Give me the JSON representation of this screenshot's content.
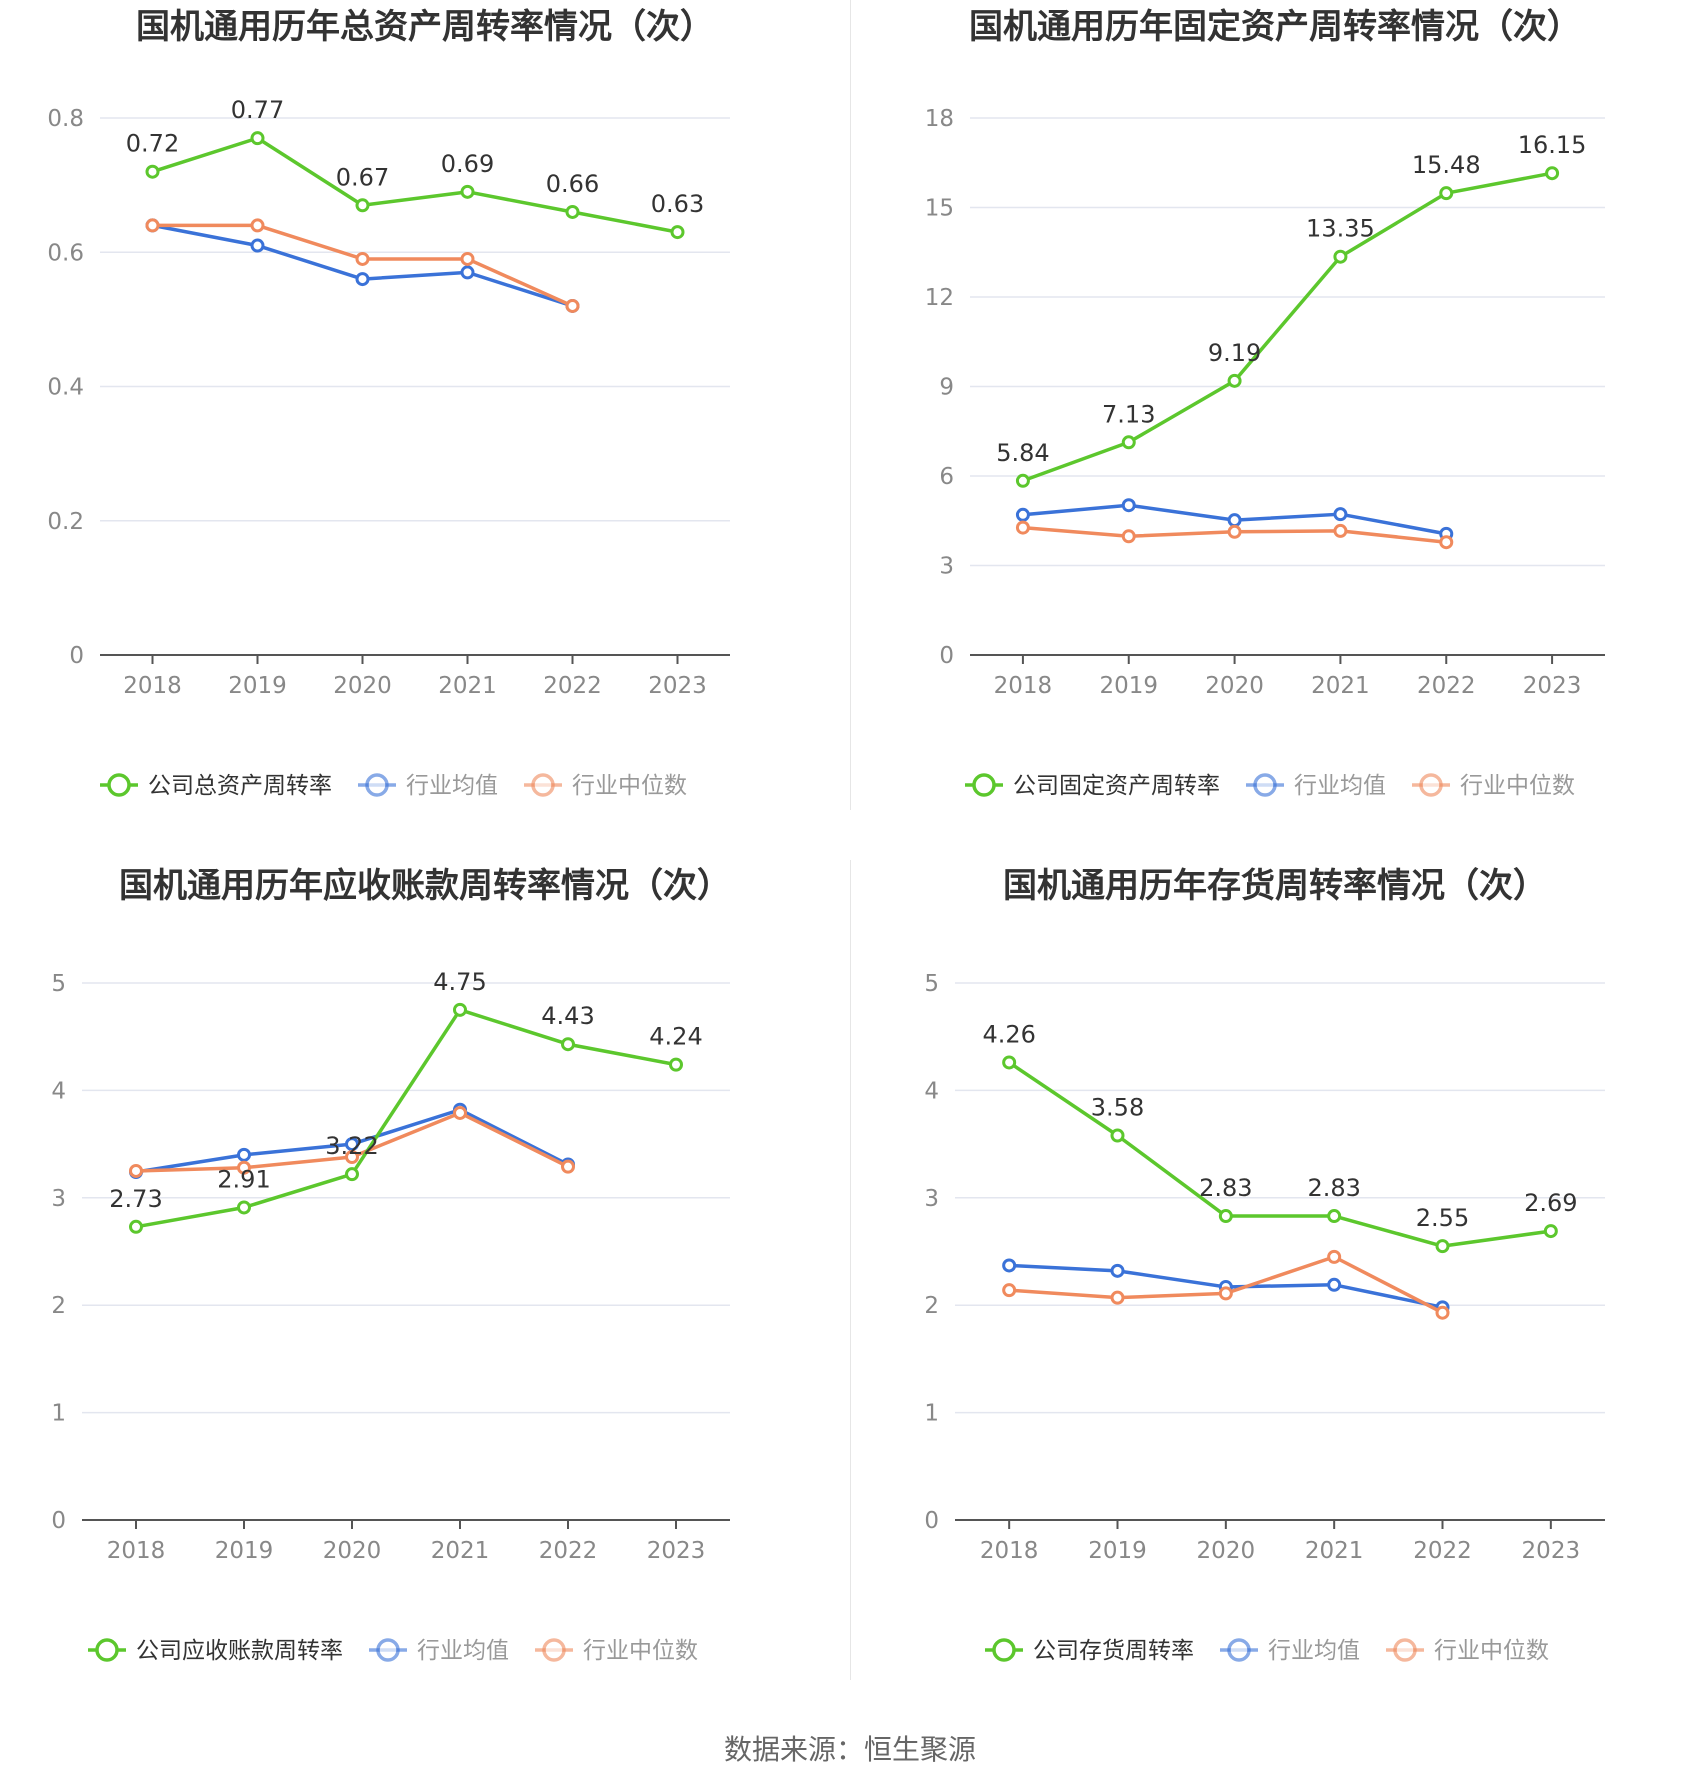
{
  "colors": {
    "company": "#5cc72d",
    "avg": "#3a72d8",
    "median": "#f08a5d",
    "grid": "#e3e6ef",
    "axis": "#555555",
    "tick": "#888888"
  },
  "footer": "数据来源：恒生聚源",
  "chart_data": [
    {
      "type": "line",
      "title": "国机通用历年总资产周转率情况（次）",
      "categories": [
        "2018",
        "2019",
        "2020",
        "2021",
        "2022",
        "2023"
      ],
      "ylim": [
        0,
        0.8
      ],
      "yticks": [
        "0",
        "0.2",
        "0.4",
        "0.6",
        "0.8"
      ],
      "ytick_values": [
        0,
        0.2,
        0.4,
        0.6,
        0.8
      ],
      "legend_position": "bottom",
      "series": [
        {
          "name": "公司总资产周转率",
          "key": "company",
          "values": [
            0.72,
            0.77,
            0.67,
            0.69,
            0.66,
            0.63
          ],
          "labels": [
            "0.72",
            "0.77",
            "0.67",
            "0.69",
            "0.66",
            "0.63"
          ]
        },
        {
          "name": "行业均值",
          "key": "avg",
          "values": [
            0.64,
            0.61,
            0.56,
            0.57,
            0.52,
            null
          ]
        },
        {
          "name": "行业中位数",
          "key": "median",
          "values": [
            0.64,
            0.64,
            0.59,
            0.59,
            0.52,
            null
          ]
        }
      ]
    },
    {
      "type": "line",
      "title": "国机通用历年固定资产周转率情况（次）",
      "categories": [
        "2018",
        "2019",
        "2020",
        "2021",
        "2022",
        "2023"
      ],
      "ylim": [
        0,
        18
      ],
      "yticks": [
        "0",
        "3",
        "6",
        "9",
        "12",
        "15",
        "18"
      ],
      "ytick_values": [
        0,
        3,
        6,
        9,
        12,
        15,
        18
      ],
      "legend_position": "bottom",
      "series": [
        {
          "name": "公司固定资产周转率",
          "key": "company",
          "values": [
            5.84,
            7.13,
            9.19,
            13.35,
            15.48,
            16.15
          ],
          "labels": [
            "5.84",
            "7.13",
            "9.19",
            "13.35",
            "15.48",
            "16.15"
          ]
        },
        {
          "name": "行业均值",
          "key": "avg",
          "values": [
            4.7,
            5.02,
            4.52,
            4.72,
            4.06,
            null
          ]
        },
        {
          "name": "行业中位数",
          "key": "median",
          "values": [
            4.27,
            3.98,
            4.13,
            4.16,
            3.78,
            null
          ]
        }
      ]
    },
    {
      "type": "line",
      "title": "国机通用历年应收账款周转率情况（次）",
      "categories": [
        "2018",
        "2019",
        "2020",
        "2021",
        "2022",
        "2023"
      ],
      "ylim": [
        0,
        5
      ],
      "yticks": [
        "0",
        "1",
        "2",
        "3",
        "4",
        "5"
      ],
      "ytick_values": [
        0,
        1,
        2,
        3,
        4,
        5
      ],
      "legend_position": "bottom",
      "series": [
        {
          "name": "公司应收账款周转率",
          "key": "company",
          "values": [
            2.73,
            2.91,
            3.22,
            4.75,
            4.43,
            4.24
          ],
          "labels": [
            "2.73",
            "2.91",
            "3.22",
            "4.75",
            "4.43",
            "4.24"
          ]
        },
        {
          "name": "行业均值",
          "key": "avg",
          "values": [
            3.24,
            3.4,
            3.5,
            3.82,
            3.31,
            null
          ]
        },
        {
          "name": "行业中位数",
          "key": "median",
          "values": [
            3.25,
            3.28,
            3.38,
            3.79,
            3.29,
            null
          ]
        }
      ]
    },
    {
      "type": "line",
      "title": "国机通用历年存货周转率情况（次）",
      "categories": [
        "2018",
        "2019",
        "2020",
        "2021",
        "2022",
        "2023"
      ],
      "ylim": [
        0,
        5
      ],
      "yticks": [
        "0",
        "1",
        "2",
        "3",
        "4",
        "5"
      ],
      "ytick_values": [
        0,
        1,
        2,
        3,
        4,
        5
      ],
      "legend_position": "bottom",
      "series": [
        {
          "name": "公司存货周转率",
          "key": "company",
          "values": [
            4.26,
            3.58,
            2.83,
            2.83,
            2.55,
            2.69
          ],
          "labels": [
            "4.26",
            "3.58",
            "2.83",
            "2.83",
            "2.55",
            "2.69"
          ]
        },
        {
          "name": "行业均值",
          "key": "avg",
          "values": [
            2.37,
            2.32,
            2.17,
            2.19,
            1.98,
            null
          ]
        },
        {
          "name": "行业中位数",
          "key": "median",
          "values": [
            2.14,
            2.07,
            2.11,
            2.45,
            1.93,
            null
          ]
        }
      ]
    }
  ]
}
